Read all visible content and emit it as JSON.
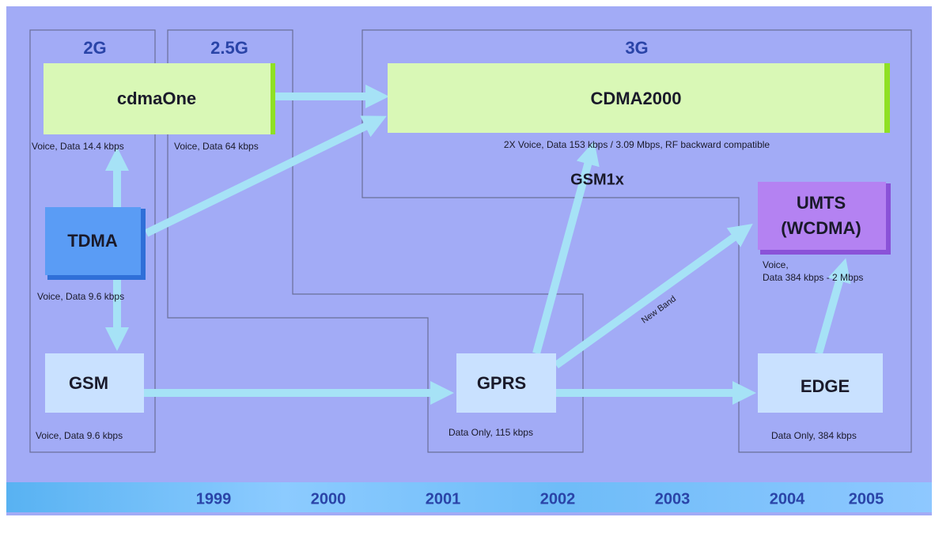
{
  "generations": [
    "2G",
    "2.5G",
    "3G"
  ],
  "generation_caption": "Voice, Data 64 kbps",
  "nodes": [
    {
      "label": "cdmaOne",
      "caption": [
        "Voice, Data 14.4 kbps"
      ]
    },
    {
      "label": "CDMA2000",
      "caption": [
        "2X Voice, Data 153 kbps / 3.09 Mbps, RF backward compatible"
      ]
    },
    {
      "label": "TDMA",
      "caption": [
        "Voice, Data 9.6 kbps"
      ]
    },
    {
      "label": "GSM",
      "caption": [
        "Voice, Data 9.6 kbps"
      ]
    },
    {
      "label": "GPRS",
      "caption": [
        "Data Only, 115 kbps"
      ]
    },
    {
      "label": "UMTS",
      "sublabel": "(WCDMA)",
      "caption": [
        "Voice,",
        "Data 384 kbps - 2 Mbps"
      ]
    },
    {
      "label": "EDGE",
      "caption": [
        "Data Only, 384 kbps"
      ]
    }
  ],
  "annotations": [
    "GSM1x",
    "New Band"
  ],
  "timeline": [
    "1999",
    "2000",
    "2001",
    "2002",
    "2003",
    "2004",
    "2005"
  ]
}
